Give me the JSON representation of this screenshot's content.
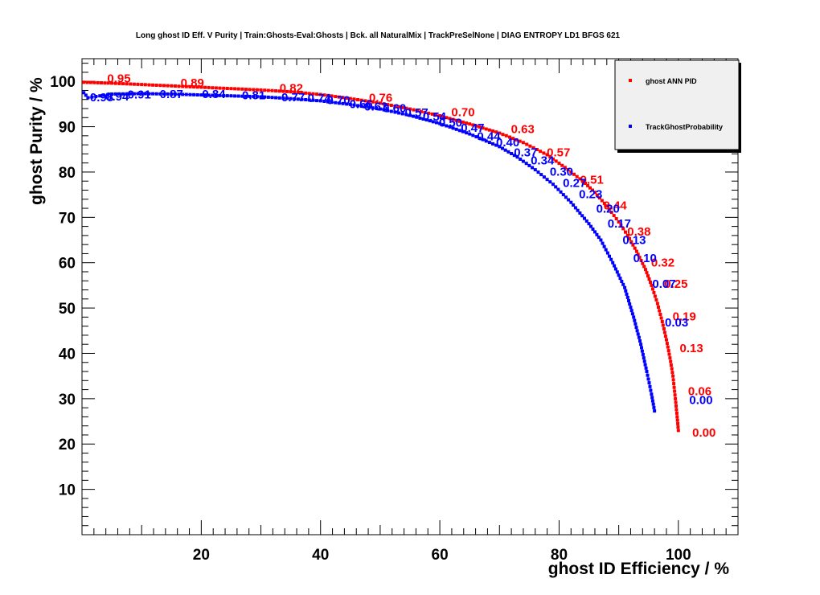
{
  "chart_data": {
    "type": "line",
    "title": "Long ghost ID Eff. V Purity | Train:Ghosts-Eval:Ghosts | Bck. all NaturalMix | TrackPreSelNone | DIAG ENTROPY LD1 BFGS 621",
    "xlabel": "ghost ID Efficiency / %",
    "ylabel": "ghost Purity / %",
    "xlim": [
      0,
      110
    ],
    "ylim": [
      0,
      105
    ],
    "xticks": [
      20,
      40,
      60,
      80,
      100
    ],
    "yticks": [
      10,
      20,
      30,
      40,
      50,
      60,
      70,
      80,
      90,
      100
    ],
    "grid": false,
    "legend_position": "top-right",
    "series": [
      {
        "name": "ghost ANN PID",
        "color": "#ff0000",
        "points": [
          [
            0.3,
            99.8
          ],
          [
            5,
            99.6
          ],
          [
            10,
            99.3
          ],
          [
            15,
            99.0
          ],
          [
            20,
            98.7
          ],
          [
            25,
            98.4
          ],
          [
            30,
            98.1
          ],
          [
            35,
            97.7
          ],
          [
            40,
            97.1
          ],
          [
            45,
            96.2
          ],
          [
            50,
            95.2
          ],
          [
            55,
            93.9
          ],
          [
            60,
            92.4
          ],
          [
            65,
            90.6
          ],
          [
            70,
            88.6
          ],
          [
            74,
            86.5
          ],
          [
            78,
            83.8
          ],
          [
            81,
            81.0
          ],
          [
            84,
            78.0
          ],
          [
            86,
            75.5
          ],
          [
            88,
            72.5
          ],
          [
            90,
            69.0
          ],
          [
            91.5,
            66.0
          ],
          [
            93,
            62.5
          ],
          [
            94.5,
            58.5
          ],
          [
            95.5,
            55.0
          ],
          [
            96.5,
            51.0
          ],
          [
            97.3,
            47.0
          ],
          [
            98,
            43.0
          ],
          [
            98.6,
            39.0
          ],
          [
            99.1,
            35.0
          ],
          [
            99.5,
            30.0
          ],
          [
            99.8,
            26.0
          ],
          [
            100,
            23.0
          ]
        ],
        "labels": [
          {
            "text": "0.95",
            "x": 6.2,
            "y": 100.8
          },
          {
            "text": "0.89",
            "x": 18.5,
            "y": 99.9
          },
          {
            "text": "0.82",
            "x": 35.1,
            "y": 98.7
          },
          {
            "text": "0.76",
            "x": 50.1,
            "y": 96.6
          },
          {
            "text": "0.70",
            "x": 63.9,
            "y": 93.4
          },
          {
            "text": "0.63",
            "x": 73.9,
            "y": 89.7
          },
          {
            "text": "0.57",
            "x": 79.9,
            "y": 84.5
          },
          {
            "text": "0.51",
            "x": 85.5,
            "y": 78.5
          },
          {
            "text": "0.44",
            "x": 89.4,
            "y": 72.8
          },
          {
            "text": "0.38",
            "x": 93.4,
            "y": 67.0
          },
          {
            "text": "0.32",
            "x": 97.4,
            "y": 60.2
          },
          {
            "text": "0.25",
            "x": 99.6,
            "y": 55.5
          },
          {
            "text": "0.19",
            "x": 101.0,
            "y": 48.3
          },
          {
            "text": "0.13",
            "x": 102.2,
            "y": 41.3
          },
          {
            "text": "0.06",
            "x": 103.6,
            "y": 31.8
          },
          {
            "text": "0.00",
            "x": 104.3,
            "y": 22.7
          }
        ]
      },
      {
        "name": "TrackGhostProbability",
        "color": "#0000ff",
        "points": [
          [
            0.3,
            97.5
          ],
          [
            1,
            96.4
          ],
          [
            3,
            96.8
          ],
          [
            5,
            97.2
          ],
          [
            10,
            97.3
          ],
          [
            15,
            97.2
          ],
          [
            20,
            97.0
          ],
          [
            25,
            96.8
          ],
          [
            30,
            96.6
          ],
          [
            35,
            96.2
          ],
          [
            40,
            95.7
          ],
          [
            45,
            94.9
          ],
          [
            50,
            93.9
          ],
          [
            55,
            92.5
          ],
          [
            60,
            90.7
          ],
          [
            65,
            88.4
          ],
          [
            70,
            85.6
          ],
          [
            73,
            83.3
          ],
          [
            76,
            80.5
          ],
          [
            79,
            77.3
          ],
          [
            82,
            73.3
          ],
          [
            85,
            68.6
          ],
          [
            87,
            65.0
          ],
          [
            89,
            60.0
          ],
          [
            91,
            54.5
          ],
          [
            92.5,
            48.0
          ],
          [
            93.7,
            42.0
          ],
          [
            94.7,
            36.0
          ],
          [
            95.5,
            31.0
          ],
          [
            96,
            27.3
          ]
        ],
        "labels": [
          {
            "text": "0.98",
            "x": 3.3,
            "y": 96.7
          },
          {
            "text": "0.94",
            "x": 5.9,
            "y": 96.8
          },
          {
            "text": "0.91",
            "x": 9.6,
            "y": 97.3
          },
          {
            "text": "0.87",
            "x": 15.0,
            "y": 97.4
          },
          {
            "text": "0.84",
            "x": 22.1,
            "y": 97.4
          },
          {
            "text": "0.81",
            "x": 28.8,
            "y": 97.1
          },
          {
            "text": "0.77",
            "x": 35.4,
            "y": 96.7
          },
          {
            "text": "0.74",
            "x": 39.8,
            "y": 96.5
          },
          {
            "text": "0.70",
            "x": 43.0,
            "y": 96.0
          },
          {
            "text": "0.66",
            "x": 46.8,
            "y": 95.2
          },
          {
            "text": "0.63",
            "x": 49.3,
            "y": 94.6
          },
          {
            "text": "0.60",
            "x": 52.4,
            "y": 94.3
          },
          {
            "text": "0.57",
            "x": 56.1,
            "y": 93.3
          },
          {
            "text": "0.54",
            "x": 59.1,
            "y": 92.4
          },
          {
            "text": "0.50",
            "x": 61.8,
            "y": 91.1
          },
          {
            "text": "0.47",
            "x": 65.5,
            "y": 89.9
          },
          {
            "text": "0.44",
            "x": 68.2,
            "y": 88.1
          },
          {
            "text": "0.40",
            "x": 71.4,
            "y": 86.7
          },
          {
            "text": "0.37",
            "x": 74.4,
            "y": 84.5
          },
          {
            "text": "0.34",
            "x": 77.2,
            "y": 82.7
          },
          {
            "text": "0.30",
            "x": 80.4,
            "y": 80.3
          },
          {
            "text": "0.27",
            "x": 82.6,
            "y": 77.8
          },
          {
            "text": "0.23",
            "x": 85.3,
            "y": 75.3
          },
          {
            "text": "0.20",
            "x": 88.2,
            "y": 72.1
          },
          {
            "text": "0.17",
            "x": 90.1,
            "y": 68.8
          },
          {
            "text": "0.13",
            "x": 92.6,
            "y": 65.2
          },
          {
            "text": "0.10",
            "x": 94.4,
            "y": 61.2
          },
          {
            "text": "0.07",
            "x": 97.6,
            "y": 55.5
          },
          {
            "text": "0.03",
            "x": 99.7,
            "y": 47.0
          },
          {
            "text": "0.00",
            "x": 103.8,
            "y": 29.9
          }
        ]
      }
    ]
  }
}
